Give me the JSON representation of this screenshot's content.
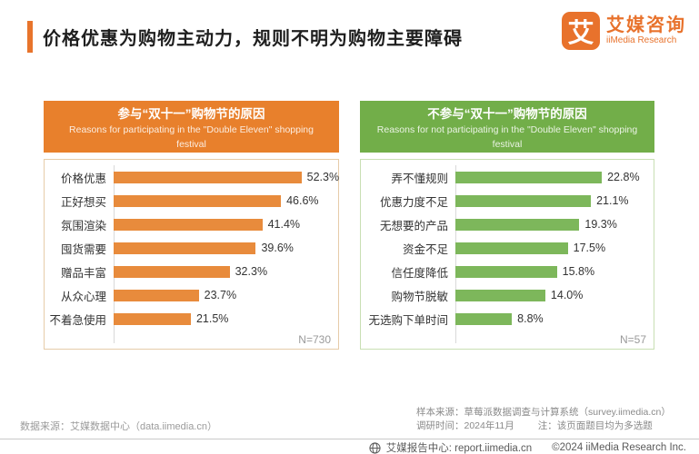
{
  "page": {
    "title": "价格优惠为购物主动力，规则不明为购物主要障碍"
  },
  "brand": {
    "logo_glyph": "艾",
    "name_cn": "艾媒咨询",
    "name_en": "iiMedia Research",
    "color": "#E8722C"
  },
  "chart_data": [
    {
      "type": "bar",
      "orientation": "horizontal",
      "title": "参与“双十一”购物节的原因",
      "subtitle": "Reasons for participating in the \"Double Eleven\" shopping festival",
      "categories": [
        "价格优惠",
        "正好想买",
        "氛围渲染",
        "囤货需要",
        "赠品丰富",
        "从众心理",
        "不着急使用"
      ],
      "values": [
        52.3,
        46.6,
        41.4,
        39.6,
        32.3,
        23.7,
        21.5
      ],
      "value_labels": [
        "52.3%",
        "46.6%",
        "41.4%",
        "39.6%",
        "32.3%",
        "23.7%",
        "21.5%"
      ],
      "sample_note": "N=730",
      "xlim": [
        0,
        61
      ],
      "grid": false,
      "legend": false,
      "colors": {
        "header_bg": "#E8802C",
        "bar": "#E88B3C",
        "box_border": "#E6CCA9"
      }
    },
    {
      "type": "bar",
      "orientation": "horizontal",
      "title": "不参与“双十一”购物节的原因",
      "subtitle": "Reasons for not participating in the \"Double Eleven\" shopping festival",
      "categories": [
        "弄不懂规则",
        "优惠力度不足",
        "无想要的产品",
        "资金不足",
        "信任度降低",
        "购物节脱敏",
        "无选购下单时间"
      ],
      "values": [
        22.8,
        21.1,
        19.3,
        17.5,
        15.8,
        14.0,
        8.8
      ],
      "value_labels": [
        "22.8%",
        "21.1%",
        "19.3%",
        "17.5%",
        "15.8%",
        "14.0%",
        "8.8%"
      ],
      "sample_note": "N=57",
      "xlim": [
        0,
        30
      ],
      "grid": false,
      "legend": false,
      "colors": {
        "header_bg": "#72AE49",
        "bar": "#7DB75B",
        "box_border": "#C8DFB3"
      }
    }
  ],
  "footnotes": {
    "data_source": "数据来源：艾媒数据中心（data.iimedia.cn）",
    "sample_source": "样本来源：草莓派数据调查与计算系统（survey.iimedia.cn）",
    "survey_time": "调研时间：2024年11月",
    "note": "注：该页面题目均为多选题"
  },
  "footer": {
    "report_center": "艾媒报告中心: report.iimedia.cn",
    "copyright": "©2024 iiMedia Research Inc."
  }
}
